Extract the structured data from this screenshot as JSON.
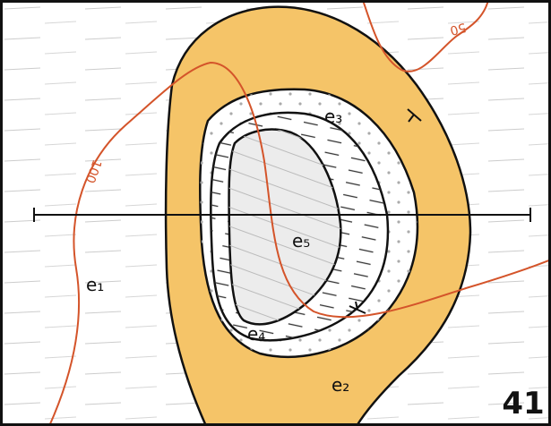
{
  "map": {
    "units": [
      {
        "label": "e₁"
      },
      {
        "label": "e₂"
      },
      {
        "label": "e₃"
      },
      {
        "label": "e₄"
      },
      {
        "label": "e₅"
      }
    ],
    "contours": [
      {
        "label": "50"
      },
      {
        "label": "100"
      }
    ],
    "page_number": "41"
  }
}
